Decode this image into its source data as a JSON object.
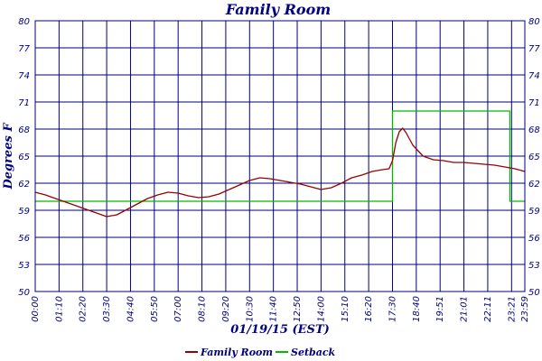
{
  "chart_data": {
    "type": "line",
    "title": "Family Room",
    "xlabel": "01/19/15 (EST)",
    "ylabel": "Degrees F",
    "ylim": [
      50,
      80
    ],
    "y_ticks": [
      50,
      53,
      56,
      59,
      62,
      65,
      68,
      71,
      74,
      77,
      80
    ],
    "x_ticks": [
      "00:00",
      "01:10",
      "02:20",
      "03:30",
      "04:40",
      "05:50",
      "07:00",
      "08:10",
      "09:20",
      "10:30",
      "11:40",
      "12:50",
      "14:00",
      "15:10",
      "16:20",
      "17:30",
      "18:40",
      "19:51",
      "21:01",
      "22:11",
      "23:21",
      "23:59"
    ],
    "xlim_minutes": [
      0,
      1439
    ],
    "grid": true,
    "legend_position": "bottom",
    "series": [
      {
        "name": "Family Room",
        "color": "#990000",
        "x_minutes": [
          0,
          30,
          60,
          90,
          120,
          150,
          180,
          210,
          240,
          270,
          300,
          330,
          360,
          390,
          420,
          450,
          480,
          510,
          540,
          570,
          600,
          630,
          660,
          690,
          720,
          750,
          780,
          810,
          840,
          870,
          900,
          930,
          960,
          990,
          1020,
          1040,
          1050,
          1060,
          1070,
          1080,
          1090,
          1110,
          1140,
          1170,
          1200,
          1230,
          1260,
          1290,
          1320,
          1350,
          1380,
          1410,
          1439
        ],
        "values": [
          61.0,
          60.7,
          60.3,
          59.9,
          59.5,
          59.1,
          58.7,
          58.3,
          58.5,
          59.1,
          59.7,
          60.3,
          60.7,
          61.0,
          60.9,
          60.6,
          60.4,
          60.5,
          60.8,
          61.3,
          61.8,
          62.3,
          62.6,
          62.5,
          62.3,
          62.1,
          61.9,
          61.6,
          61.3,
          61.5,
          62.0,
          62.6,
          62.9,
          63.3,
          63.5,
          63.6,
          64.5,
          66.5,
          67.7,
          68.1,
          67.6,
          66.2,
          65.0,
          64.6,
          64.5,
          64.3,
          64.3,
          64.2,
          64.1,
          64.0,
          63.8,
          63.6,
          63.3
        ]
      },
      {
        "name": "Setback",
        "color": "#00bb00",
        "x_minutes": [
          0,
          1050,
          1050,
          1395,
          1395,
          1439
        ],
        "values": [
          60,
          60,
          70,
          70,
          60,
          60
        ]
      }
    ]
  }
}
